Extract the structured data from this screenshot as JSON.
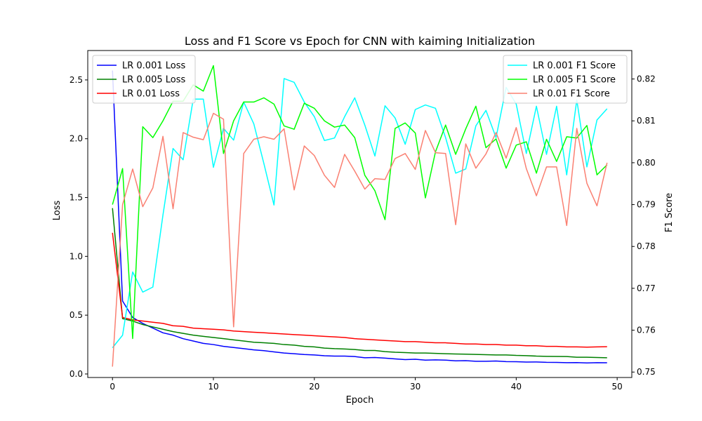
{
  "chart_data": {
    "type": "line",
    "title": "Loss and F1 Score vs Epoch for CNN with kaiming Initialization",
    "xlabel": "Epoch",
    "ylabel_left": "Loss",
    "ylabel_right": "F1 Score",
    "xlim": [
      -2.45,
      51.45
    ],
    "ylim_left": [
      -0.03,
      2.75
    ],
    "ylim_right": [
      0.7487,
      0.8268
    ],
    "x_ticks": [
      0,
      10,
      20,
      30,
      40,
      50
    ],
    "y_ticks_left": [
      0.0,
      0.5,
      1.0,
      1.5,
      2.0,
      2.5
    ],
    "y_ticks_right": [
      0.75,
      0.76,
      0.77,
      0.78,
      0.79,
      0.8,
      0.81,
      0.82
    ],
    "legend_left_position": "upper left",
    "legend_right_position": "upper right",
    "grid": false,
    "x": [
      0,
      1,
      2,
      3,
      4,
      5,
      6,
      7,
      8,
      9,
      10,
      11,
      12,
      13,
      14,
      15,
      16,
      17,
      18,
      19,
      20,
      21,
      22,
      23,
      24,
      25,
      26,
      27,
      28,
      29,
      30,
      31,
      32,
      33,
      34,
      35,
      36,
      37,
      38,
      39,
      40,
      41,
      42,
      43,
      44,
      45,
      46,
      47,
      48,
      49
    ],
    "loss_series": [
      {
        "name": "LR 0.001 Loss",
        "color": "#0000ff",
        "values": [
          2.58,
          0.62,
          0.48,
          0.43,
          0.39,
          0.35,
          0.33,
          0.3,
          0.28,
          0.26,
          0.25,
          0.235,
          0.225,
          0.215,
          0.205,
          0.198,
          0.188,
          0.178,
          0.172,
          0.165,
          0.162,
          0.155,
          0.152,
          0.152,
          0.148,
          0.138,
          0.14,
          0.135,
          0.128,
          0.122,
          0.125,
          0.118,
          0.12,
          0.118,
          0.112,
          0.113,
          0.108,
          0.108,
          0.11,
          0.105,
          0.104,
          0.101,
          0.102,
          0.099,
          0.098,
          0.096,
          0.097,
          0.094,
          0.096,
          0.095
        ]
      },
      {
        "name": "LR 0.005 Loss",
        "color": "#008000",
        "values": [
          1.41,
          0.47,
          0.45,
          0.42,
          0.4,
          0.38,
          0.36,
          0.345,
          0.33,
          0.32,
          0.31,
          0.3,
          0.29,
          0.28,
          0.27,
          0.265,
          0.26,
          0.25,
          0.245,
          0.235,
          0.23,
          0.22,
          0.215,
          0.212,
          0.208,
          0.2,
          0.2,
          0.19,
          0.185,
          0.182,
          0.178,
          0.178,
          0.175,
          0.172,
          0.17,
          0.168,
          0.166,
          0.164,
          0.162,
          0.162,
          0.158,
          0.156,
          0.152,
          0.15,
          0.149,
          0.148,
          0.142,
          0.142,
          0.14,
          0.138
        ]
      },
      {
        "name": "LR 0.01 Loss",
        "color": "#ff0000",
        "values": [
          1.2,
          0.48,
          0.46,
          0.45,
          0.44,
          0.43,
          0.41,
          0.405,
          0.39,
          0.385,
          0.38,
          0.375,
          0.365,
          0.36,
          0.355,
          0.35,
          0.345,
          0.34,
          0.335,
          0.33,
          0.325,
          0.32,
          0.315,
          0.31,
          0.3,
          0.295,
          0.29,
          0.285,
          0.28,
          0.275,
          0.275,
          0.27,
          0.265,
          0.265,
          0.26,
          0.255,
          0.255,
          0.25,
          0.25,
          0.245,
          0.245,
          0.24,
          0.24,
          0.235,
          0.235,
          0.23,
          0.23,
          0.228,
          0.23,
          0.232
        ]
      }
    ],
    "f1_series": [
      {
        "name": "LR 0.001 F1 Score",
        "color": "#00ffff",
        "values": [
          0.7558,
          0.7588,
          0.7739,
          0.7691,
          0.7703,
          0.7875,
          0.8034,
          0.8007,
          0.8152,
          0.8152,
          0.7989,
          0.8082,
          0.8054,
          0.8145,
          0.8093,
          0.7998,
          0.7899,
          0.8201,
          0.8192,
          0.8145,
          0.811,
          0.8053,
          0.8059,
          0.811,
          0.8155,
          0.809,
          0.8016,
          0.8136,
          0.8107,
          0.8044,
          0.8127,
          0.8138,
          0.813,
          0.806,
          0.7975,
          0.7985,
          0.8088,
          0.8125,
          0.806,
          0.818,
          0.814,
          0.8022,
          0.8135,
          0.802,
          0.8135,
          0.7971,
          0.815,
          0.799,
          0.8102,
          0.8129
        ]
      },
      {
        "name": "LR 0.005 F1 Score",
        "color": "#00ff00",
        "values": [
          0.79,
          0.7986,
          0.758,
          0.8086,
          0.806,
          0.81,
          0.8147,
          0.8147,
          0.8186,
          0.8171,
          0.8232,
          0.8022,
          0.81,
          0.8145,
          0.8145,
          0.8155,
          0.814,
          0.8088,
          0.808,
          0.8142,
          0.813,
          0.81,
          0.8085,
          0.809,
          0.806,
          0.797,
          0.7933,
          0.7864,
          0.8082,
          0.8095,
          0.8071,
          0.7916,
          0.8026,
          0.809,
          0.802,
          0.8081,
          0.8135,
          0.8036,
          0.8057,
          0.7987,
          0.8042,
          0.805,
          0.7975,
          0.8056,
          0.8003,
          0.8062,
          0.8059,
          0.8089,
          0.7971,
          0.7995
        ]
      },
      {
        "name": "LR 0.01 F1 Score",
        "color": "#fa8072",
        "values": [
          0.7513,
          0.79,
          0.7985,
          0.7895,
          0.794,
          0.8063,
          0.789,
          0.8072,
          0.8061,
          0.8055,
          0.8118,
          0.8104,
          0.7608,
          0.8022,
          0.8056,
          0.8062,
          0.8056,
          0.8081,
          0.7935,
          0.804,
          0.8017,
          0.797,
          0.7941,
          0.802,
          0.798,
          0.7937,
          0.7962,
          0.796,
          0.801,
          0.8022,
          0.7984,
          0.8077,
          0.8024,
          0.8022,
          0.7852,
          0.8045,
          0.7987,
          0.8021,
          0.8072,
          0.8011,
          0.8084,
          0.7986,
          0.7921,
          0.799,
          0.799,
          0.785,
          0.8082,
          0.7951,
          0.7897,
          0.8
        ]
      }
    ]
  }
}
